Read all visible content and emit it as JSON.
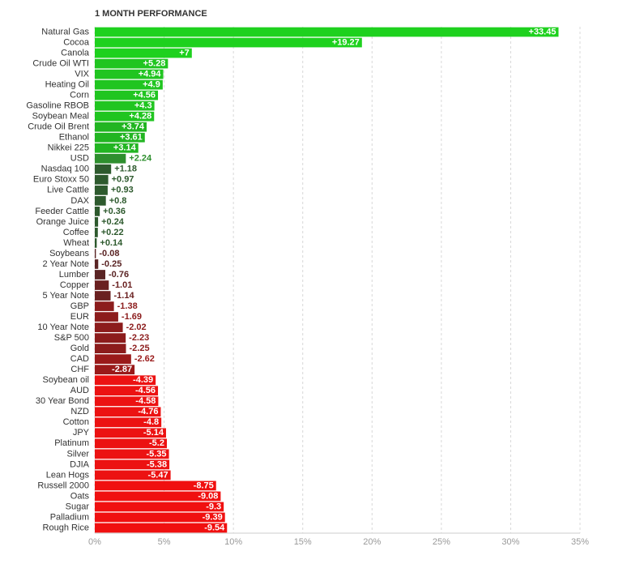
{
  "chart_data": {
    "type": "bar",
    "orientation": "horizontal",
    "title": "1 MONTH PERFORMANCE",
    "categories": [
      "Natural Gas",
      "Cocoa",
      "Canola",
      "Crude Oil WTI",
      "VIX",
      "Heating Oil",
      "Corn",
      "Gasoline RBOB",
      "Soybean Meal",
      "Crude Oil Brent",
      "Ethanol",
      "Nikkei 225",
      "USD",
      "Nasdaq 100",
      "Euro Stoxx 50",
      "Live Cattle",
      "DAX",
      "Feeder Cattle",
      "Orange Juice",
      "Coffee",
      "Wheat",
      "Soybeans",
      "2 Year Note",
      "Lumber",
      "Copper",
      "5 Year Note",
      "GBP",
      "EUR",
      "10 Year Note",
      "S&P 500",
      "Gold",
      "CAD",
      "CHF",
      "Soybean oil",
      "AUD",
      "30 Year Bond",
      "NZD",
      "Cotton",
      "JPY",
      "Platinum",
      "Silver",
      "DJIA",
      "Lean Hogs",
      "Russell 2000",
      "Oats",
      "Sugar",
      "Palladium",
      "Rough Rice"
    ],
    "values": [
      33.45,
      19.27,
      7,
      5.28,
      4.94,
      4.9,
      4.56,
      4.3,
      4.28,
      3.74,
      3.61,
      3.14,
      2.24,
      1.18,
      0.97,
      0.93,
      0.8,
      0.36,
      0.24,
      0.22,
      0.14,
      -0.08,
      -0.25,
      -0.76,
      -1.01,
      -1.14,
      -1.38,
      -1.69,
      -2.02,
      -2.23,
      -2.25,
      -2.62,
      -2.87,
      -4.39,
      -4.56,
      -4.58,
      -4.76,
      -4.8,
      -5.14,
      -5.2,
      -5.35,
      -5.38,
      -5.47,
      -8.75,
      -9.08,
      -9.3,
      -9.39,
      -9.54
    ],
    "value_labels": [
      "+33.45",
      "+19.27",
      "+7",
      "+5.28",
      "+4.94",
      "+4.9",
      "+4.56",
      "+4.3",
      "+4.28",
      "+3.74",
      "+3.61",
      "+3.14",
      "+2.24",
      "+1.18",
      "+0.97",
      "+0.93",
      "+0.8",
      "+0.36",
      "+0.24",
      "+0.22",
      "+0.14",
      "-0.08",
      "-0.25",
      "-0.76",
      "-1.01",
      "-1.14",
      "-1.38",
      "-1.69",
      "-2.02",
      "-2.23",
      "-2.25",
      "-2.62",
      "-2.87",
      "-4.39",
      "-4.56",
      "-4.58",
      "-4.76",
      "-4.8",
      "-5.14",
      "-5.2",
      "-5.35",
      "-5.38",
      "-5.47",
      "-8.75",
      "-9.08",
      "-9.3",
      "-9.39",
      "-9.54"
    ],
    "colors": [
      "#1ed11e",
      "#1ed11e",
      "#1ed11e",
      "#20c520",
      "#20c520",
      "#20c520",
      "#20c520",
      "#20c520",
      "#20c520",
      "#22b522",
      "#22b522",
      "#22b522",
      "#2e8f2e",
      "#2e5a2e",
      "#2e5a2e",
      "#2e5a2e",
      "#2e5a2e",
      "#2e5a2e",
      "#2e5a2e",
      "#2e5a2e",
      "#2e5a2e",
      "#5a2424",
      "#5a2424",
      "#5a2424",
      "#6a2020",
      "#6a2020",
      "#8c1c1c",
      "#8c1c1c",
      "#8c1c1c",
      "#8c1c1c",
      "#8c1c1c",
      "#9a1a1a",
      "#9a1a1a",
      "#ec1212",
      "#ec1212",
      "#ec1212",
      "#ec1212",
      "#ec1212",
      "#ec1212",
      "#ec1212",
      "#ec1212",
      "#ec1212",
      "#ec1212",
      "#f01010",
      "#f01010",
      "#f01010",
      "#f01010",
      "#f01010"
    ],
    "xlim": [
      0,
      35
    ],
    "xticks": [
      {
        "value": 0,
        "label": "0%"
      },
      {
        "value": 5,
        "label": "5%"
      },
      {
        "value": 10,
        "label": "10%"
      },
      {
        "value": 15,
        "label": "15%"
      },
      {
        "value": 20,
        "label": "20%"
      },
      {
        "value": 25,
        "label": "25%"
      },
      {
        "value": 30,
        "label": "30%"
      },
      {
        "value": 35,
        "label": "35%"
      }
    ],
    "grid": true
  }
}
